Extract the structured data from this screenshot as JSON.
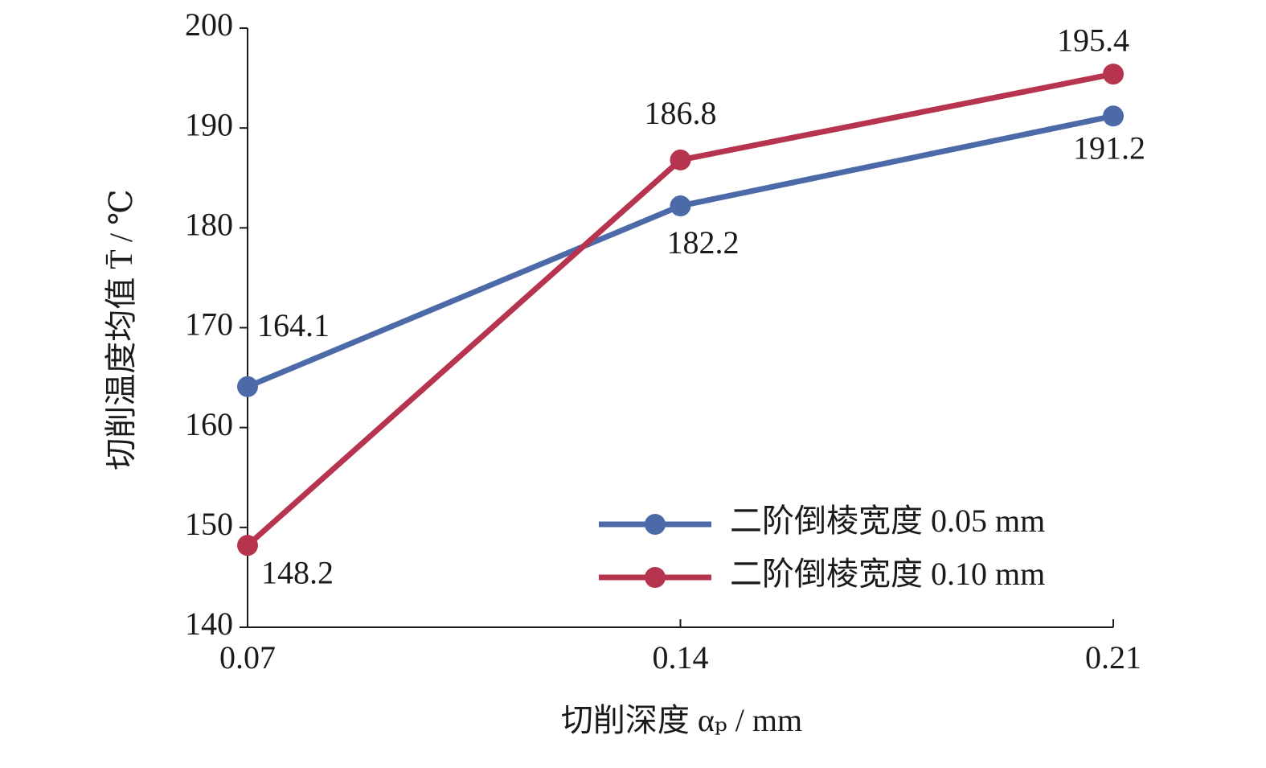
{
  "chart_data": {
    "type": "line",
    "x_label": "切削深度 αₚ / mm",
    "y_label": "切削温度均值 T̄ / ℃",
    "x": [
      0.07,
      0.14,
      0.21
    ],
    "series": [
      {
        "name": "二阶倒棱宽度 0.05 mm",
        "color": "#4c6aa8",
        "values": [
          164.1,
          182.2,
          191.2
        ]
      },
      {
        "name": "二阶倒棱宽度 0.10 mm",
        "color": "#b7344f",
        "values": [
          148.2,
          186.8,
          195.4
        ]
      }
    ],
    "xlim": [
      0.07,
      0.21
    ],
    "xticks": [
      0.07,
      0.14,
      0.21
    ],
    "ylim": [
      140,
      200
    ],
    "yticks": [
      140,
      150,
      160,
      170,
      180,
      190,
      200
    ],
    "grid": false,
    "legend": "lower right"
  }
}
